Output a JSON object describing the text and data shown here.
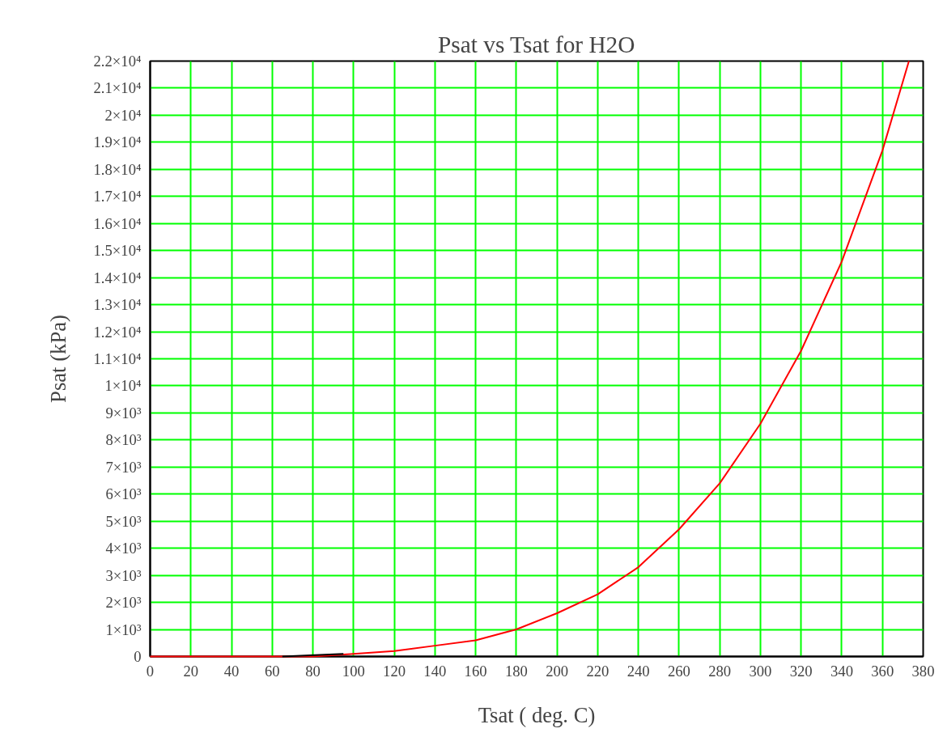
{
  "chart_data": {
    "type": "line",
    "title": "Psat vs Tsat for H2O",
    "xlabel": "Tsat ( deg. C)",
    "ylabel": "Psat (kPa)",
    "series": [
      {
        "color": "#ff0000",
        "x": [
          0,
          20,
          40,
          60,
          80,
          100,
          120,
          140,
          160,
          180,
          200,
          220,
          240,
          260,
          280,
          300,
          320,
          340,
          360,
          373
        ],
        "values": [
          0,
          0,
          0,
          0,
          0,
          100,
          200,
          400,
          600,
          1000,
          1600,
          2300,
          3300,
          4700,
          6400,
          8600,
          11300,
          14600,
          18700,
          22000
        ]
      },
      {
        "color": "#000000",
        "x": [
          65,
          95
        ],
        "values": [
          0,
          100
        ]
      }
    ],
    "xlim": [
      0,
      380
    ],
    "xticks": [
      0,
      20,
      40,
      60,
      80,
      100,
      120,
      140,
      160,
      180,
      200,
      220,
      240,
      260,
      280,
      300,
      320,
      340,
      360,
      380
    ],
    "ylim": [
      0,
      22000
    ],
    "yticks": [
      0,
      {
        "value": 1000,
        "label": "1×10³"
      },
      {
        "value": 2000,
        "label": "2×10³"
      },
      {
        "value": 3000,
        "label": "3×10³"
      },
      {
        "value": 4000,
        "label": "4×10³"
      },
      {
        "value": 5000,
        "label": "5×10³"
      },
      {
        "value": 6000,
        "label": "6×10³"
      },
      {
        "value": 7000,
        "label": "7×10³"
      },
      {
        "value": 8000,
        "label": "8×10³"
      },
      {
        "value": 9000,
        "label": "9×10³"
      },
      {
        "value": 10000,
        "label": "1×10⁴"
      },
      {
        "value": 11000,
        "label": "1.1×10⁴"
      },
      {
        "value": 12000,
        "label": "1.2×10⁴"
      },
      {
        "value": 13000,
        "label": "1.3×10⁴"
      },
      {
        "value": 14000,
        "label": "1.4×10⁴"
      },
      {
        "value": 15000,
        "label": "1.5×10⁴"
      },
      {
        "value": 16000,
        "label": "1.6×10⁴"
      },
      {
        "value": 17000,
        "label": "1.7×10⁴"
      },
      {
        "value": 18000,
        "label": "1.8×10⁴"
      },
      {
        "value": 19000,
        "label": "1.9×10⁴"
      },
      {
        "value": 20000,
        "label": "2×10⁴"
      },
      {
        "value": 21000,
        "label": "2.1×10⁴"
      },
      {
        "value": 22000,
        "label": "2.2×10⁴"
      }
    ],
    "grid": true,
    "line_style": "solid"
  }
}
